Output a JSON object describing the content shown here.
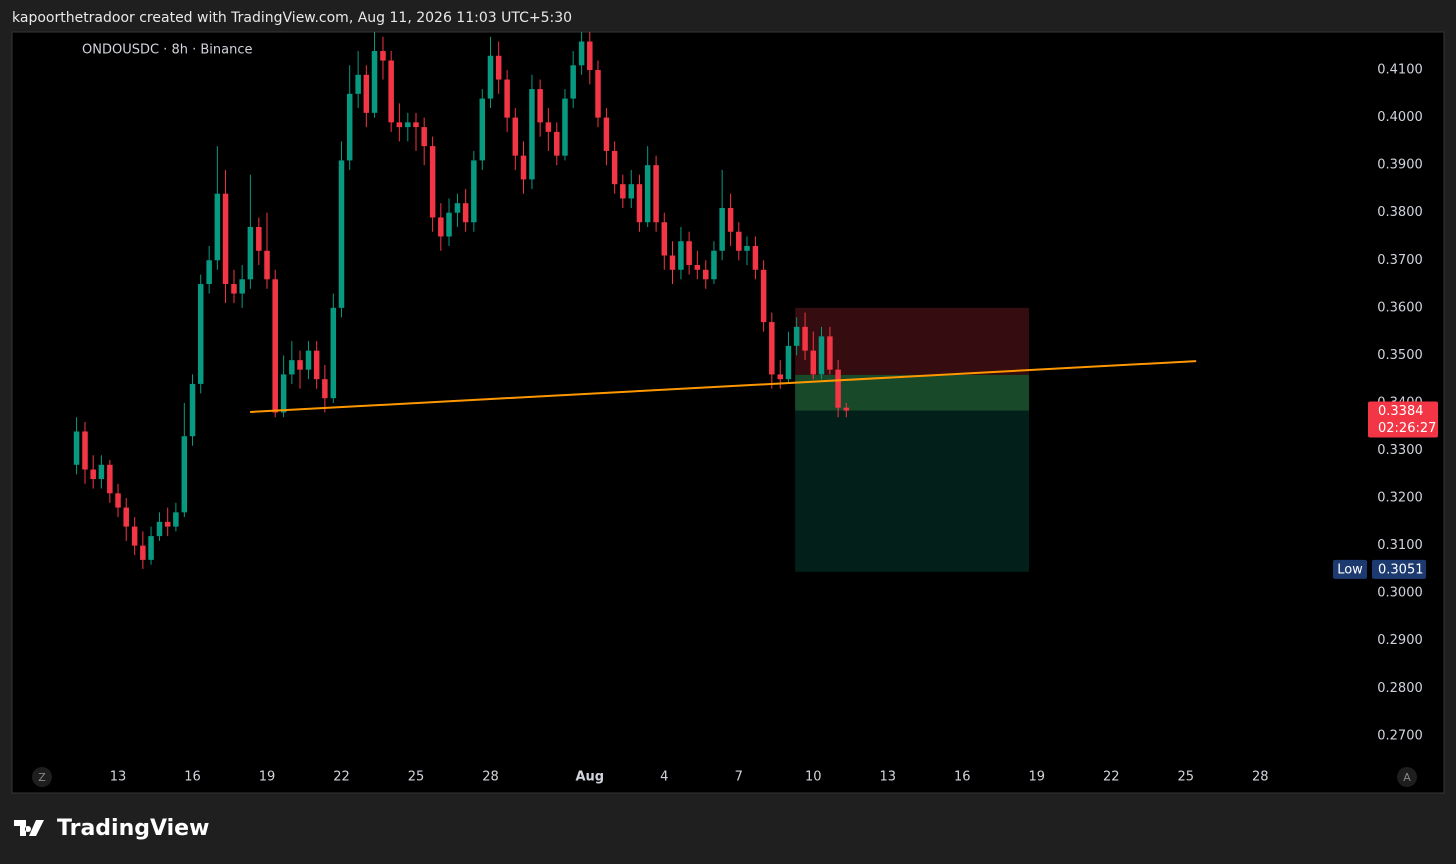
{
  "header": "kapoorthetradoor created with TradingView.com, Aug 11, 2026 11:03 UTC+5:30",
  "footer": "TradingView",
  "buttons": [
    "Z",
    "A"
  ],
  "chart_data": {
    "type": "candlestick",
    "title": "ONDOUSDC · 8h · Binance",
    "up_color": "#089981",
    "down_color": "#f23645",
    "x": [
      11.33,
      11.67,
      12,
      12.33,
      12.67,
      13,
      13.33,
      13.67,
      14,
      14.33,
      14.67,
      15,
      15.33,
      15.67,
      16,
      16.33,
      16.67,
      17,
      17.33,
      17.67,
      18,
      18.33,
      18.67,
      19,
      19.33,
      19.67,
      20,
      20.33,
      20.67,
      21,
      21.33,
      21.67,
      22,
      22.33,
      22.67,
      23,
      23.33,
      23.67,
      24,
      24.33,
      24.67,
      25,
      25.33,
      25.67,
      26,
      26.33,
      26.67,
      27,
      27.33,
      27.67,
      28,
      28.33,
      28.67,
      29,
      29.33,
      29.67,
      30,
      30.33,
      30.67,
      31,
      31.33,
      31.67,
      32,
      32.33,
      32.67,
      33,
      33.33,
      33.67,
      34,
      34.33,
      34.67,
      35,
      35.33,
      35.67,
      36,
      36.33,
      36.67,
      37,
      37.33,
      37.67,
      38,
      38.33,
      38.67,
      39,
      39.33,
      39.67,
      40,
      40.33,
      40.67,
      41,
      41.33,
      41.67,
      42,
      42.33
    ],
    "open": [
      0.327,
      0.334,
      0.326,
      0.324,
      0.327,
      0.321,
      0.318,
      0.314,
      0.31,
      0.307,
      0.312,
      0.315,
      0.314,
      0.317,
      0.333,
      0.344,
      0.365,
      0.37,
      0.384,
      0.365,
      0.363,
      0.366,
      0.377,
      0.372,
      0.366,
      0.338,
      0.346,
      0.349,
      0.347,
      0.351,
      0.345,
      0.341,
      0.36,
      0.391,
      0.405,
      0.409,
      0.401,
      0.414,
      0.412,
      0.399,
      0.398,
      0.399,
      0.398,
      0.394,
      0.379,
      0.375,
      0.38,
      0.382,
      0.378,
      0.391,
      0.404,
      0.413,
      0.408,
      0.4,
      0.392,
      0.387,
      0.406,
      0.399,
      0.397,
      0.392,
      0.404,
      0.411,
      0.416,
      0.41,
      0.4,
      0.393,
      0.386,
      0.383,
      0.386,
      0.378,
      0.39,
      0.378,
      0.371,
      0.368,
      0.374,
      0.369,
      0.368,
      0.366,
      0.372,
      0.381,
      0.376,
      0.372,
      0.373,
      0.368,
      0.357,
      0.346,
      0.345,
      0.352,
      0.356,
      0.351,
      0.346,
      0.354,
      0.347,
      0.339
    ],
    "high": [
      0.337,
      0.336,
      0.329,
      0.329,
      0.328,
      0.323,
      0.32,
      0.316,
      0.313,
      0.314,
      0.317,
      0.318,
      0.319,
      0.34,
      0.346,
      0.367,
      0.373,
      0.394,
      0.389,
      0.368,
      0.369,
      0.388,
      0.379,
      0.38,
      0.368,
      0.35,
      0.353,
      0.351,
      0.353,
      0.353,
      0.348,
      0.363,
      0.395,
      0.411,
      0.414,
      0.411,
      0.418,
      0.417,
      0.414,
      0.403,
      0.401,
      0.401,
      0.4,
      0.396,
      0.382,
      0.383,
      0.384,
      0.385,
      0.393,
      0.406,
      0.417,
      0.416,
      0.41,
      0.402,
      0.395,
      0.409,
      0.408,
      0.402,
      0.399,
      0.406,
      0.414,
      0.418,
      0.418,
      0.412,
      0.402,
      0.395,
      0.388,
      0.389,
      0.388,
      0.394,
      0.392,
      0.38,
      0.374,
      0.377,
      0.376,
      0.372,
      0.37,
      0.374,
      0.389,
      0.384,
      0.378,
      0.375,
      0.375,
      0.37,
      0.359,
      0.349,
      0.355,
      0.358,
      0.359,
      0.355,
      0.356,
      0.356,
      0.349,
      0.34
    ],
    "low": [
      0.325,
      0.323,
      0.322,
      0.322,
      0.319,
      0.316,
      0.311,
      0.308,
      0.3051,
      0.306,
      0.311,
      0.312,
      0.313,
      0.316,
      0.331,
      0.342,
      0.363,
      0.368,
      0.361,
      0.361,
      0.36,
      0.364,
      0.369,
      0.364,
      0.337,
      0.337,
      0.344,
      0.343,
      0.345,
      0.343,
      0.338,
      0.34,
      0.358,
      0.389,
      0.402,
      0.398,
      0.4,
      0.408,
      0.397,
      0.395,
      0.395,
      0.393,
      0.39,
      0.376,
      0.372,
      0.373,
      0.377,
      0.376,
      0.376,
      0.389,
      0.402,
      0.405,
      0.397,
      0.389,
      0.384,
      0.385,
      0.396,
      0.393,
      0.39,
      0.391,
      0.402,
      0.409,
      0.407,
      0.398,
      0.39,
      0.384,
      0.381,
      0.381,
      0.376,
      0.377,
      0.376,
      0.368,
      0.365,
      0.366,
      0.367,
      0.366,
      0.364,
      0.365,
      0.37,
      0.373,
      0.37,
      0.369,
      0.366,
      0.355,
      0.343,
      0.343,
      0.344,
      0.35,
      0.349,
      0.345,
      0.345,
      0.346,
      0.337,
      0.337
    ],
    "close": [
      0.334,
      0.326,
      0.324,
      0.327,
      0.321,
      0.318,
      0.314,
      0.31,
      0.307,
      0.312,
      0.315,
      0.314,
      0.317,
      0.333,
      0.344,
      0.365,
      0.37,
      0.384,
      0.365,
      0.363,
      0.366,
      0.377,
      0.372,
      0.366,
      0.338,
      0.346,
      0.349,
      0.347,
      0.351,
      0.345,
      0.341,
      0.36,
      0.391,
      0.405,
      0.409,
      0.401,
      0.414,
      0.412,
      0.399,
      0.398,
      0.399,
      0.398,
      0.394,
      0.379,
      0.375,
      0.38,
      0.382,
      0.378,
      0.391,
      0.404,
      0.413,
      0.408,
      0.4,
      0.392,
      0.387,
      0.406,
      0.399,
      0.397,
      0.392,
      0.404,
      0.411,
      0.416,
      0.41,
      0.4,
      0.393,
      0.386,
      0.383,
      0.386,
      0.378,
      0.39,
      0.378,
      0.371,
      0.368,
      0.374,
      0.369,
      0.368,
      0.366,
      0.372,
      0.381,
      0.376,
      0.372,
      0.373,
      0.368,
      0.357,
      0.346,
      0.345,
      0.352,
      0.356,
      0.351,
      0.346,
      0.354,
      0.347,
      0.339,
      0.3384
    ],
    "xlim": [
      8.73,
      63.26
    ],
    "xticks": [
      13,
      16,
      19,
      22,
      25,
      28,
      {
        "value": 32,
        "label": "Aug"
      },
      {
        "value": 35,
        "label": "4"
      },
      {
        "value": 38,
        "label": "7"
      },
      {
        "value": 41,
        "label": "10"
      },
      {
        "value": 44,
        "label": "13"
      },
      {
        "value": 47,
        "label": "16"
      },
      {
        "value": 50,
        "label": "19"
      },
      {
        "value": 53,
        "label": "22"
      },
      {
        "value": 56,
        "label": "25"
      },
      {
        "value": 59,
        "label": "28"
      }
    ],
    "ylim": [
      0.2645,
      0.418
    ],
    "yticks": [
      {
        "value": 0.27,
        "label": "0.2700"
      },
      {
        "value": 0.28,
        "label": "0.2800"
      },
      {
        "value": 0.29,
        "label": "0.2900"
      },
      {
        "value": 0.3,
        "label": "0.3000"
      },
      {
        "value": 0.31,
        "label": "0.3100"
      },
      {
        "value": 0.32,
        "label": "0.3200"
      },
      {
        "value": 0.33,
        "label": "0.3300"
      },
      {
        "value": 0.34,
        "label": "0.3400"
      },
      {
        "value": 0.35,
        "label": "0.3500"
      },
      {
        "value": 0.36,
        "label": "0.3600"
      },
      {
        "value": 0.37,
        "label": "0.3700"
      },
      {
        "value": 0.38,
        "label": "0.3800"
      },
      {
        "value": 0.39,
        "label": "0.3900"
      },
      {
        "value": 0.4,
        "label": "0.4000"
      },
      {
        "value": 0.41,
        "label": "0.4100"
      }
    ],
    "trendline": {
      "x": [
        18.32,
        56.42
      ],
      "y": [
        0.3381,
        0.3488
      ],
      "color": "#ff9800"
    },
    "position": {
      "x": [
        40.27,
        49.69
      ],
      "stop": 0.36,
      "entry": 0.3459,
      "target": 0.3045
    },
    "last_price": 0.3384,
    "countdown": "02:26:27",
    "low_label": "Low",
    "low_value": 0.3051
  }
}
